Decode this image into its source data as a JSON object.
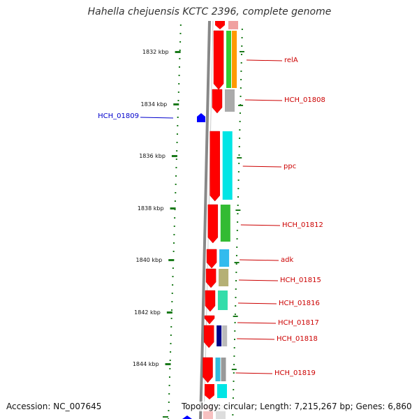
{
  "title": "Hahella chejuensis KCTC 2396, complete genome",
  "footer": {
    "accession": "Accession: NC_007645",
    "summary": "Topology: circular; Length: 7,215,267 bp; Genes: 6,860"
  },
  "colors": {
    "backbone": "#888888",
    "tick": "#1a7a1a",
    "gene_arrow": "#ff0000",
    "forward_label": "#cc0000",
    "reverse_label": "#0000cc",
    "reverse_arrow": "#0000ff"
  },
  "scale_ticks": [
    {
      "label": "1832 kbp"
    },
    {
      "label": "1834 kbp"
    },
    {
      "label": "1836 kbp"
    },
    {
      "label": "1838 kbp"
    },
    {
      "label": "1840 kbp"
    },
    {
      "label": "1842 kbp"
    },
    {
      "label": "1844 kbp"
    }
  ],
  "genes": [
    {
      "name": "relA",
      "strand": "+",
      "cog_colors": [
        "#33cc33",
        "#ff9900"
      ]
    },
    {
      "name": "HCH_01808",
      "strand": "+",
      "cog_colors": [
        "#aaaaaa"
      ]
    },
    {
      "name": "HCH_01809",
      "strand": "-",
      "cog_colors": []
    },
    {
      "name": "ppc",
      "strand": "+",
      "cog_colors": [
        "#00e5e5"
      ]
    },
    {
      "name": "HCH_01812",
      "strand": "+",
      "cog_colors": [
        "#33bb33"
      ]
    },
    {
      "name": "adk",
      "strand": "+",
      "cog_colors": [
        "#33bbee"
      ]
    },
    {
      "name": "HCH_01815",
      "strand": "+",
      "cog_colors": [
        "#b5b075"
      ]
    },
    {
      "name": "HCH_01816",
      "strand": "+",
      "cog_colors": [
        "#33ddaa"
      ]
    },
    {
      "name": "HCH_01817",
      "strand": "+",
      "cog_colors": []
    },
    {
      "name": "HCH_01818",
      "strand": "+",
      "cog_colors": [
        "#000088",
        "#bbbbbb"
      ]
    },
    {
      "name": "HCH_01819",
      "strand": "+",
      "cog_colors": [
        "#33bbdd",
        "#999999"
      ]
    }
  ]
}
